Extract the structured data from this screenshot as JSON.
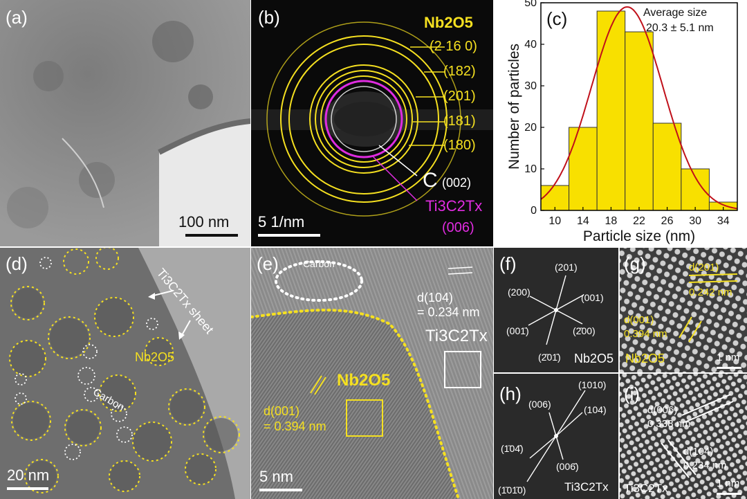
{
  "panel_a": {
    "label": "(a)",
    "scale": "100 nm"
  },
  "panel_b": {
    "label": "(b)",
    "phase": "Nb2O5",
    "rings": [
      "(2 16 0)",
      "(182)",
      "(201)",
      "(181)",
      "(180)"
    ],
    "carbon": "C",
    "carbon_plane": "(002)",
    "mxene": "Ti3C2Tx",
    "mxene_plane": "(006)",
    "scale": "5 1/nm"
  },
  "panel_c": {
    "label": "(c)",
    "annotation_line1": "Average size",
    "annotation_line2": "20.3 ± 5.1 nm"
  },
  "chart_data": {
    "type": "bar",
    "categories": [
      10,
      14,
      18,
      22,
      26,
      30,
      34
    ],
    "values": [
      6,
      20,
      48,
      43,
      21,
      10,
      2
    ],
    "xlabel": "Particle size (nm)",
    "ylabel": "Number of particles",
    "ylim": [
      0,
      50
    ],
    "xlim": [
      8,
      36
    ],
    "x_ticks": [
      "10",
      "14",
      "18",
      "22",
      "26",
      "30",
      "34"
    ],
    "y_ticks": [
      "0",
      "10",
      "20",
      "30",
      "40",
      "50"
    ],
    "fit": {
      "type": "gaussian",
      "mean": 20.3,
      "sd": 5.1,
      "peak": 49
    },
    "bar_color": "#f8e000",
    "fit_color": "#c0101a"
  },
  "panel_d": {
    "label": "(d)",
    "sheet_label": "Ti3C2Tx sheet",
    "nb_label": "Nb2O5",
    "carbon_label": "Carbon",
    "scale": "20 nm"
  },
  "panel_e": {
    "label": "(e)",
    "carbon_label": "Carbon",
    "d104": "d(104)",
    "d104_val": "= 0.234 nm",
    "mxene": "Ti3C2Tx",
    "nb": "Nb2O5",
    "d001": "d(001)",
    "d001_val": "= 0.394 nm",
    "scale": "5 nm"
  },
  "panel_f": {
    "label": "(f)",
    "spots": [
      "(201)",
      "(200)",
      "(001)",
      "(001̄)",
      "(2̄00)",
      "(2̄01̄)"
    ],
    "phase": "Nb2O5"
  },
  "panel_g": {
    "label": "(g)",
    "d201": "d(201)",
    "d201_val": "0.242 nm",
    "d001": "d(001)",
    "d001_val": "0.394 nm",
    "phase": "Nb2O5",
    "scale": "1 nm"
  },
  "panel_h": {
    "label": "(h)",
    "spots": [
      "(1010)",
      "(006)",
      "(104)",
      "(1̄04̄)",
      "(006̄)",
      "(1̄01̄0)"
    ],
    "phase": "Ti3C2Tx"
  },
  "panel_i": {
    "label": "(i)",
    "d006": "d(006)",
    "d006_val": "0.338 nm",
    "d104": "d(104)",
    "d104_val": "0.234 nm",
    "phase": "Ti3C2Tx",
    "scale": "1 nm"
  },
  "colors": {
    "yellow": "#f5e020",
    "magenta": "#e02ce0",
    "white": "#ffffff"
  }
}
